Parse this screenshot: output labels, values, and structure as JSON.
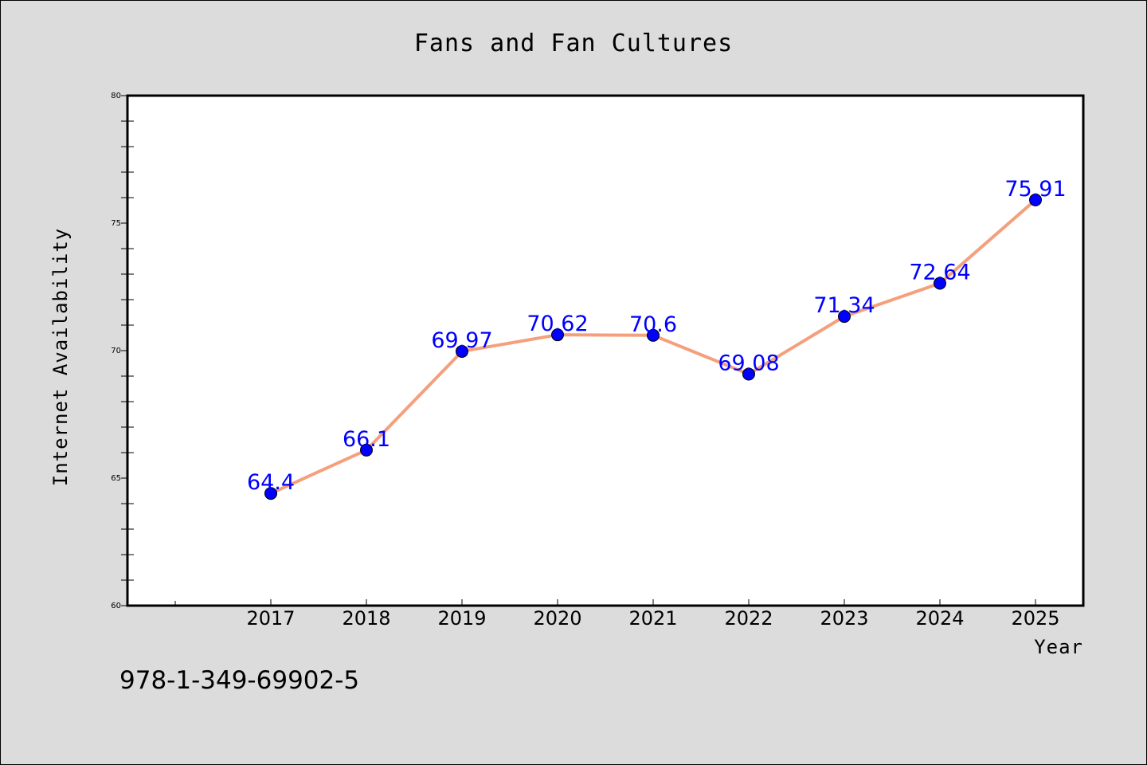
{
  "chart_data": {
    "type": "line",
    "title": "Fans and Fan Cultures",
    "xlabel": "Year",
    "ylabel": "Internet Availability",
    "categories": [
      "2017",
      "2018",
      "2019",
      "2020",
      "2021",
      "2022",
      "2023",
      "2024",
      "2025"
    ],
    "series": [
      {
        "values": [
          64.4,
          66.1,
          69.97,
          70.62,
          70.6,
          69.08,
          71.34,
          72.64,
          75.91
        ],
        "labels": [
          "64.4",
          "66.1",
          "69.97",
          "70.62",
          "70.6",
          "69.08",
          "71.34",
          "72.64",
          "75.91"
        ],
        "line_color": "#f4a07c",
        "marker_color": "#0000ff"
      }
    ],
    "ylim": [
      60,
      80
    ],
    "yticks": [
      "60",
      "65",
      "70",
      "75",
      "80"
    ],
    "grid": false,
    "legend": "none"
  },
  "footer": {
    "isbn": "978-1-349-69902-5"
  }
}
